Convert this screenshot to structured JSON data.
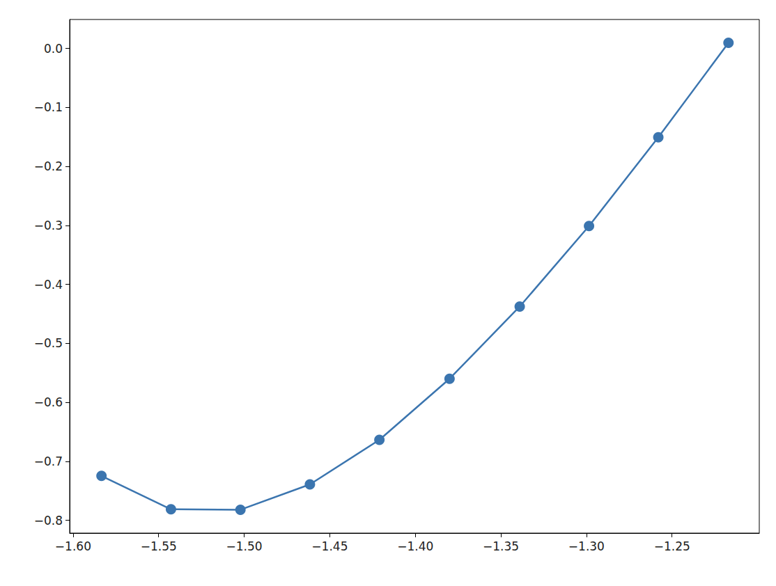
{
  "chart_data": {
    "type": "line",
    "x": [
      -1.5834,
      -1.5428,
      -1.5022,
      -1.4616,
      -1.421,
      -1.38,
      -1.339,
      -1.2985,
      -1.258,
      -1.217
    ],
    "values": [
      -0.7247,
      -0.7812,
      -0.782,
      -0.739,
      -0.6635,
      -0.56,
      -0.4376,
      -0.301,
      -0.1506,
      0.0094
    ],
    "color": "#3b75af",
    "marker": "o",
    "line_style": "solid",
    "xlim": [
      -1.602,
      -1.199
    ],
    "xticks": [
      {
        "value": -1.6,
        "label": "−1.60"
      },
      {
        "value": -1.55,
        "label": "−1.55"
      },
      {
        "value": -1.5,
        "label": "−1.50"
      },
      {
        "value": -1.45,
        "label": "−1.45"
      },
      {
        "value": -1.4,
        "label": "−1.40"
      },
      {
        "value": -1.35,
        "label": "−1.35"
      },
      {
        "value": -1.3,
        "label": "−1.30"
      },
      {
        "value": -1.25,
        "label": "−1.25"
      }
    ],
    "ylim": [
      -0.8216,
      0.049
    ],
    "yticks": [
      {
        "value": 0.0,
        "label": "0.0"
      },
      {
        "value": -0.1,
        "label": "−0.1"
      },
      {
        "value": -0.2,
        "label": "−0.2"
      },
      {
        "value": -0.3,
        "label": "−0.3"
      },
      {
        "value": -0.4,
        "label": "−0.4"
      },
      {
        "value": -0.5,
        "label": "−0.5"
      },
      {
        "value": -0.6,
        "label": "−0.6"
      },
      {
        "value": -0.7,
        "label": "−0.7"
      },
      {
        "value": -0.8,
        "label": "−0.8"
      }
    ],
    "grid": false
  }
}
